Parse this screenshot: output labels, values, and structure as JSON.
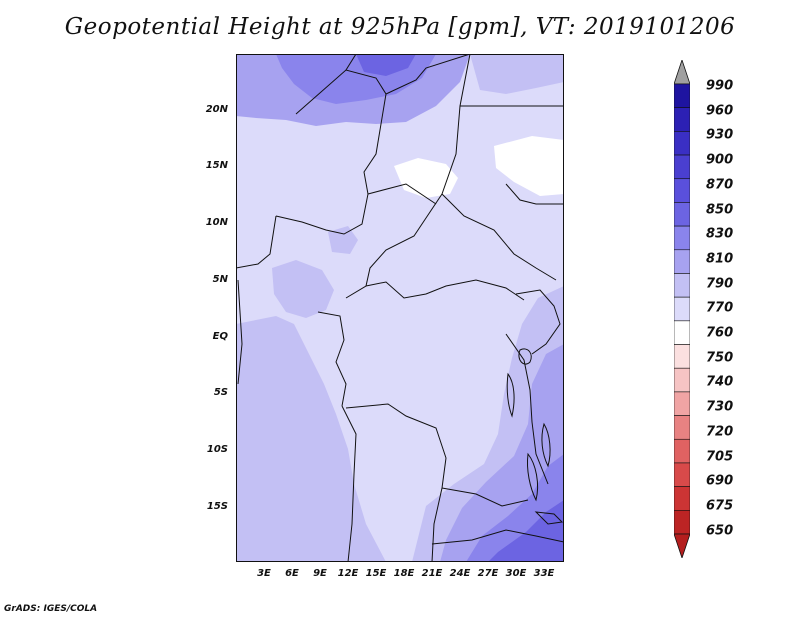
{
  "title": "Geopotential Height at 925hPa [gpm], VT: 2019101206",
  "credit": "GrADS: IGES/COLA",
  "map": {
    "lon_range": [
      0,
      35
    ],
    "lat_range": [
      -20,
      25
    ],
    "y_ticks": [
      "20N",
      "15N",
      "10N",
      "5N",
      "EQ",
      "5S",
      "10S",
      "15S"
    ],
    "x_ticks": [
      "3E",
      "6E",
      "9E",
      "12E",
      "15E",
      "18E",
      "21E",
      "24E",
      "27E",
      "30E",
      "33E"
    ]
  },
  "colorbar": {
    "labels": [
      "990",
      "960",
      "930",
      "900",
      "870",
      "850",
      "830",
      "810",
      "790",
      "770",
      "760",
      "750",
      "740",
      "730",
      "720",
      "705",
      "690",
      "675",
      "650"
    ],
    "colors": {
      "over": "#a0a0a0",
      "under": "#b41e1e",
      "bins_top_to_bottom": [
        "#1e14a0",
        "#2c20b4",
        "#3a2fc4",
        "#4a3fd0",
        "#5a50dc",
        "#6c64e2",
        "#8a84ec",
        "#a7a2f0",
        "#c3c0f4",
        "#dcdbfa",
        "#ffffff",
        "#fbe0e0",
        "#f6c4c4",
        "#f0a4a4",
        "#e88282",
        "#e06262",
        "#d84a4a",
        "#cc3434",
        "#bc2424"
      ]
    }
  }
}
